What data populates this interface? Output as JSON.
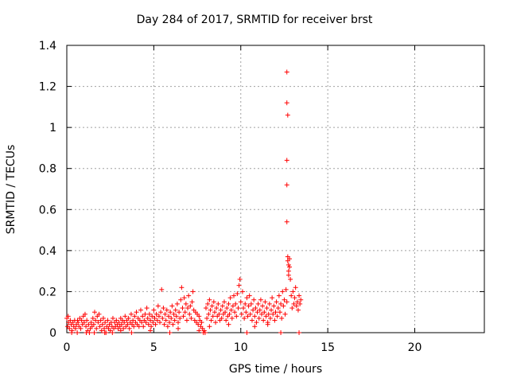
{
  "chart_data": {
    "type": "scatter",
    "title": "Day 284 of 2017, SRMTID for receiver brst",
    "xlabel": "GPS time / hours",
    "ylabel": "SRMTID / TECUs",
    "xlim": [
      0,
      24
    ],
    "ylim": [
      0,
      1.4
    ],
    "xticks": [
      0,
      5,
      10,
      15,
      20
    ],
    "yticks": [
      0,
      0.2,
      0.4,
      0.6,
      0.8,
      1,
      1.2,
      1.4
    ],
    "xtick_labels": [
      "0",
      "5",
      "10",
      "15",
      "20"
    ],
    "ytick_labels": [
      "0",
      "0.2",
      "0.4",
      "0.6",
      "0.8",
      "1",
      "1.2",
      "1.4"
    ],
    "grid": true,
    "marker": "+",
    "series_color": "#ff0000",
    "series": [
      {
        "values": [
          [
            0.0,
            0.07
          ],
          [
            0.05,
            0.03
          ],
          [
            0.1,
            0.05
          ],
          [
            0.15,
            0.02
          ],
          [
            0.2,
            0.06
          ],
          [
            0.25,
            0.04
          ],
          [
            0.3,
            0.01
          ],
          [
            0.35,
            0.05
          ],
          [
            0.4,
            0.03
          ],
          [
            0.45,
            0.06
          ],
          [
            0.5,
            0.02
          ],
          [
            0.55,
            0.04
          ],
          [
            0.6,
            0.0
          ],
          [
            0.65,
            0.05
          ],
          [
            0.7,
            0.03
          ],
          [
            0.75,
            0.07
          ],
          [
            0.8,
            0.02
          ],
          [
            0.85,
            0.06
          ],
          [
            0.9,
            0.04
          ],
          [
            0.95,
            0.08
          ],
          [
            1.0,
            0.05
          ],
          [
            1.05,
            0.09
          ],
          [
            1.1,
            0.03
          ],
          [
            1.15,
            0.06
          ],
          [
            1.2,
            0.01
          ],
          [
            1.25,
            0.04
          ],
          [
            1.3,
            0.0
          ],
          [
            1.35,
            0.02
          ],
          [
            1.4,
            0.05
          ],
          [
            1.45,
            0.03
          ],
          [
            1.5,
            0.07
          ],
          [
            1.55,
            0.04
          ],
          [
            1.6,
            0.1
          ],
          [
            1.65,
            0.06
          ],
          [
            1.7,
            0.02
          ],
          [
            1.75,
            0.08
          ],
          [
            1.8,
            0.05
          ],
          [
            1.85,
            0.09
          ],
          [
            1.9,
            0.03
          ],
          [
            1.95,
            0.06
          ],
          [
            2.0,
            0.01
          ],
          [
            2.05,
            0.04
          ],
          [
            2.1,
            0.07
          ],
          [
            2.15,
            0.02
          ],
          [
            2.2,
            0.05
          ],
          [
            2.25,
            0.0
          ],
          [
            2.3,
            0.03
          ],
          [
            2.35,
            0.06
          ],
          [
            2.4,
            0.02
          ],
          [
            2.45,
            0.04
          ],
          [
            2.5,
            0.01
          ],
          [
            2.55,
            0.05
          ],
          [
            2.6,
            0.03
          ],
          [
            2.65,
            0.07
          ],
          [
            2.7,
            0.02
          ],
          [
            2.75,
            0.05
          ],
          [
            2.8,
            0.03
          ],
          [
            2.85,
            0.06
          ],
          [
            2.9,
            0.04
          ],
          [
            2.95,
            0.02
          ],
          [
            3.0,
            0.05
          ],
          [
            3.05,
            0.03
          ],
          [
            3.1,
            0.07
          ],
          [
            3.15,
            0.04
          ],
          [
            3.2,
            0.06
          ],
          [
            3.25,
            0.02
          ],
          [
            3.3,
            0.05
          ],
          [
            3.35,
            0.08
          ],
          [
            3.4,
            0.03
          ],
          [
            3.45,
            0.06
          ],
          [
            3.5,
            0.04
          ],
          [
            3.55,
            0.07
          ],
          [
            3.6,
            0.02
          ],
          [
            3.65,
            0.05
          ],
          [
            3.7,
            0.09
          ],
          [
            3.75,
            0.04
          ],
          [
            3.8,
            0.06
          ],
          [
            3.85,
            0.03
          ],
          [
            3.9,
            0.08
          ],
          [
            3.95,
            0.05
          ],
          [
            4.0,
            0.1
          ],
          [
            4.05,
            0.04
          ],
          [
            4.1,
            0.07
          ],
          [
            4.15,
            0.03
          ],
          [
            4.2,
            0.06
          ],
          [
            4.25,
            0.11
          ],
          [
            4.3,
            0.05
          ],
          [
            4.35,
            0.08
          ],
          [
            4.4,
            0.03
          ],
          [
            4.45,
            0.06
          ],
          [
            4.5,
            0.09
          ],
          [
            4.55,
            0.05
          ],
          [
            4.6,
            0.12
          ],
          [
            4.65,
            0.07
          ],
          [
            4.7,
            0.04
          ],
          [
            4.75,
            0.09
          ],
          [
            4.8,
            0.06
          ],
          [
            4.85,
            0.03
          ],
          [
            4.9,
            0.08
          ],
          [
            4.95,
            0.05
          ],
          [
            5.0,
            0.11
          ],
          [
            5.05,
            0.07
          ],
          [
            5.1,
            0.04
          ],
          [
            5.15,
            0.09
          ],
          [
            5.2,
            0.06
          ],
          [
            5.25,
            0.13
          ],
          [
            5.3,
            0.08
          ],
          [
            5.35,
            0.05
          ],
          [
            5.4,
            0.1
          ],
          [
            5.45,
            0.21
          ],
          [
            5.5,
            0.07
          ],
          [
            5.55,
            0.12
          ],
          [
            5.6,
            0.04
          ],
          [
            5.65,
            0.09
          ],
          [
            5.7,
            0.06
          ],
          [
            5.75,
            0.11
          ],
          [
            5.8,
            0.03
          ],
          [
            5.85,
            0.08
          ],
          [
            5.9,
            0.05
          ],
          [
            5.95,
            0.1
          ],
          [
            6.0,
            0.07
          ],
          [
            6.05,
            0.13
          ],
          [
            6.1,
            0.04
          ],
          [
            6.15,
            0.09
          ],
          [
            6.2,
            0.06
          ],
          [
            6.25,
            0.11
          ],
          [
            6.3,
            0.08
          ],
          [
            6.35,
            0.14
          ],
          [
            6.4,
            0.05
          ],
          [
            6.45,
            0.1
          ],
          [
            6.5,
            0.07
          ],
          [
            6.55,
            0.16
          ],
          [
            6.6,
            0.22
          ],
          [
            6.65,
            0.12
          ],
          [
            6.7,
            0.08
          ],
          [
            6.75,
            0.17
          ],
          [
            6.8,
            0.1
          ],
          [
            6.85,
            0.14
          ],
          [
            6.9,
            0.06
          ],
          [
            6.95,
            0.12
          ],
          [
            7.0,
            0.18
          ],
          [
            7.05,
            0.09
          ],
          [
            7.1,
            0.13
          ],
          [
            7.15,
            0.07
          ],
          [
            7.2,
            0.15
          ],
          [
            7.25,
            0.2
          ],
          [
            7.3,
            0.11
          ],
          [
            7.35,
            0.06
          ],
          [
            7.4,
            0.1
          ],
          [
            7.45,
            0.05
          ],
          [
            7.5,
            0.09
          ],
          [
            7.55,
            0.04
          ],
          [
            7.6,
            0.08
          ],
          [
            7.65,
            0.06
          ],
          [
            7.7,
            0.03
          ],
          [
            7.75,
            0.05
          ],
          [
            7.8,
            0.02
          ],
          [
            7.85,
            0.0
          ],
          [
            7.9,
            0.01
          ],
          [
            7.95,
            0.0
          ],
          [
            8.0,
            0.12
          ],
          [
            8.05,
            0.07
          ],
          [
            8.1,
            0.14
          ],
          [
            8.15,
            0.09
          ],
          [
            8.2,
            0.16
          ],
          [
            8.25,
            0.11
          ],
          [
            8.3,
            0.06
          ],
          [
            8.35,
            0.13
          ],
          [
            8.4,
            0.08
          ],
          [
            8.45,
            0.15
          ],
          [
            8.5,
            0.1
          ],
          [
            8.55,
            0.05
          ],
          [
            8.6,
            0.12
          ],
          [
            8.65,
            0.08
          ],
          [
            8.7,
            0.14
          ],
          [
            8.75,
            0.09
          ],
          [
            8.8,
            0.06
          ],
          [
            8.85,
            0.11
          ],
          [
            8.9,
            0.07
          ],
          [
            8.95,
            0.13
          ],
          [
            9.0,
            0.09
          ],
          [
            9.05,
            0.15
          ],
          [
            9.1,
            0.1
          ],
          [
            9.15,
            0.06
          ],
          [
            9.2,
            0.12
          ],
          [
            9.25,
            0.08
          ],
          [
            9.3,
            0.14
          ],
          [
            9.35,
            0.09
          ],
          [
            9.4,
            0.17
          ],
          [
            9.45,
            0.11
          ],
          [
            9.5,
            0.07
          ],
          [
            9.55,
            0.13
          ],
          [
            9.6,
            0.18
          ],
          [
            9.65,
            0.1
          ],
          [
            9.7,
            0.14
          ],
          [
            9.75,
            0.08
          ],
          [
            9.8,
            0.19
          ],
          [
            9.85,
            0.12
          ],
          [
            9.9,
            0.23
          ],
          [
            9.95,
            0.26
          ],
          [
            10.0,
            0.15
          ],
          [
            10.05,
            0.09
          ],
          [
            10.1,
            0.2
          ],
          [
            10.15,
            0.12
          ],
          [
            10.2,
            0.07
          ],
          [
            10.25,
            0.14
          ],
          [
            10.3,
            0.1
          ],
          [
            10.35,
            0.17
          ],
          [
            10.4,
            0.08
          ],
          [
            10.45,
            0.13
          ],
          [
            10.5,
            0.18
          ],
          [
            10.55,
            0.09
          ],
          [
            10.6,
            0.14
          ],
          [
            10.65,
            0.06
          ],
          [
            10.7,
            0.11
          ],
          [
            10.75,
            0.16
          ],
          [
            10.8,
            0.08
          ],
          [
            10.85,
            0.12
          ],
          [
            10.9,
            0.05
          ],
          [
            10.95,
            0.1
          ],
          [
            11.0,
            0.14
          ],
          [
            11.05,
            0.07
          ],
          [
            11.1,
            0.11
          ],
          [
            11.15,
            0.16
          ],
          [
            11.2,
            0.09
          ],
          [
            11.25,
            0.13
          ],
          [
            11.3,
            0.06
          ],
          [
            11.35,
            0.1
          ],
          [
            11.4,
            0.15
          ],
          [
            11.45,
            0.08
          ],
          [
            11.5,
            0.12
          ],
          [
            11.55,
            0.05
          ],
          [
            11.6,
            0.09
          ],
          [
            11.65,
            0.14
          ],
          [
            11.7,
            0.07
          ],
          [
            11.75,
            0.11
          ],
          [
            11.8,
            0.17
          ],
          [
            11.85,
            0.09
          ],
          [
            11.9,
            0.13
          ],
          [
            11.95,
            0.06
          ],
          [
            12.0,
            0.1
          ],
          [
            12.05,
            0.15
          ],
          [
            12.1,
            0.08
          ],
          [
            12.15,
            0.12
          ],
          [
            12.2,
            0.18
          ],
          [
            12.25,
            0.1
          ],
          [
            12.3,
            0.14
          ],
          [
            12.35,
            0.07
          ],
          [
            12.4,
            0.2
          ],
          [
            12.45,
            0.13
          ],
          [
            12.5,
            0.16
          ],
          [
            12.55,
            0.09
          ],
          [
            12.6,
            0.21
          ],
          [
            12.65,
            0.15
          ],
          [
            12.7,
            0.37
          ],
          [
            12.75,
            0.3
          ],
          [
            12.8,
            0.36
          ],
          [
            12.85,
            0.26
          ],
          [
            12.9,
            0.18
          ],
          [
            12.95,
            0.12
          ],
          [
            13.0,
            0.2
          ],
          [
            13.05,
            0.14
          ],
          [
            13.1,
            0.17
          ],
          [
            13.15,
            0.22
          ],
          [
            13.2,
            0.13
          ],
          [
            13.25,
            0.15
          ],
          [
            13.3,
            0.11
          ],
          [
            13.35,
            0.18
          ],
          [
            13.4,
            0.14
          ],
          [
            13.45,
            0.16
          ],
          [
            0.08,
            0.08
          ],
          [
            0.28,
            0.0
          ],
          [
            0.62,
            0.06
          ],
          [
            1.12,
            0.0
          ],
          [
            1.58,
            0.0
          ],
          [
            2.18,
            0.0
          ],
          [
            2.62,
            0.0
          ],
          [
            3.72,
            0.0
          ],
          [
            5.92,
            0.0
          ],
          [
            10.35,
            0.0
          ],
          [
            12.3,
            0.0
          ],
          [
            13.35,
            0.0
          ],
          [
            7.6,
            0.01
          ],
          [
            9.3,
            0.04
          ],
          [
            10.8,
            0.03
          ],
          [
            11.55,
            0.04
          ],
          [
            8.2,
            0.03
          ],
          [
            6.4,
            0.02
          ],
          [
            4.8,
            0.01
          ],
          [
            3.1,
            0.01
          ],
          [
            12.65,
            0.54
          ],
          [
            12.65,
            0.72
          ],
          [
            12.65,
            0.84
          ],
          [
            12.7,
            1.06
          ],
          [
            12.65,
            1.12
          ],
          [
            12.65,
            1.27
          ],
          [
            12.7,
            0.35
          ],
          [
            12.75,
            0.33
          ],
          [
            12.8,
            0.32
          ],
          [
            12.75,
            0.28
          ]
        ]
      }
    ]
  }
}
